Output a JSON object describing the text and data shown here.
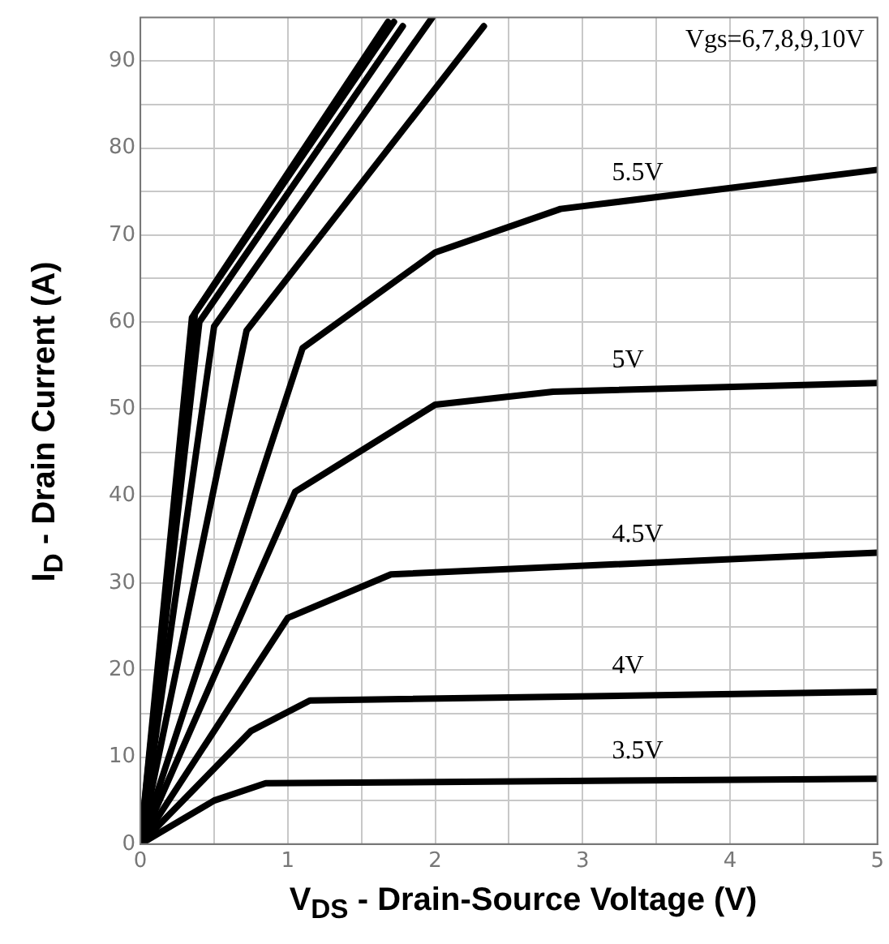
{
  "chart_data": {
    "type": "line",
    "xlabel": "V$_{DS}$ - Drain-Source Voltage (V)",
    "ylabel": "I$_{D}$ - Drain Current (A)",
    "annotations": [
      "Vgs=6,7,8,9,10V"
    ],
    "series": [
      {
        "color": "#000000",
        "x": [
          0,
          0.35,
          1.68
        ],
        "values": [
          0,
          60.5,
          94.5
        ]
      },
      {
        "color": "#000000",
        "x": [
          0,
          0.37,
          1.72
        ],
        "values": [
          0,
          61,
          94.5
        ]
      },
      {
        "color": "#000000",
        "x": [
          0,
          0.4,
          1.78
        ],
        "values": [
          0,
          60,
          94
        ]
      },
      {
        "color": "#000000",
        "x": [
          0,
          0.5,
          1.98
        ],
        "values": [
          0,
          59.5,
          95
        ]
      },
      {
        "color": "#000000",
        "x": [
          0,
          0.72,
          2.33
        ],
        "values": [
          0,
          59,
          94
        ]
      },
      {
        "name": "5.5V",
        "color": "#000000",
        "x": [
          0,
          1.1,
          2,
          2.85,
          5
        ],
        "values": [
          0,
          57,
          68,
          73,
          77.5
        ]
      },
      {
        "name": "5V",
        "color": "#000000",
        "x": [
          0,
          1.05,
          2,
          2.8,
          5
        ],
        "values": [
          0,
          40.5,
          50.5,
          52,
          53
        ]
      },
      {
        "name": "4.5V",
        "color": "#000000",
        "x": [
          0,
          1,
          1.7,
          5
        ],
        "values": [
          0,
          26,
          31,
          33.5
        ]
      },
      {
        "name": "4V",
        "color": "#000000",
        "x": [
          0,
          0.75,
          1.15,
          5
        ],
        "values": [
          0,
          13,
          16.5,
          17.5
        ]
      },
      {
        "name": "3.5V",
        "color": "#000000",
        "x": [
          0,
          0.5,
          0.85,
          5
        ],
        "values": [
          0,
          5,
          7,
          7.5
        ]
      }
    ],
    "xlim": [
      0,
      5
    ],
    "xticks": [
      0,
      {
        "value": 0.5,
        "label": null
      },
      1,
      {
        "value": 1.5,
        "label": null
      },
      2,
      {
        "value": 2.5,
        "label": null
      },
      3,
      {
        "value": 3.5,
        "label": null
      },
      4,
      {
        "value": 4.5,
        "label": null
      },
      5
    ],
    "ylim": [
      0,
      95
    ],
    "yticks": [
      0,
      {
        "value": 5,
        "label": null
      },
      10,
      {
        "value": 15,
        "label": null
      },
      20,
      {
        "value": 25,
        "label": null
      },
      30,
      {
        "value": 35,
        "label": null
      },
      40,
      {
        "value": 45,
        "label": null
      },
      50,
      {
        "value": 55,
        "label": null
      },
      60,
      {
        "value": 65,
        "label": null
      },
      70,
      {
        "value": 75,
        "label": null
      },
      80,
      {
        "value": 85,
        "label": null
      },
      90
    ],
    "grid": true,
    "legend": false,
    "marker": "none",
    "line_style": "solid"
  }
}
